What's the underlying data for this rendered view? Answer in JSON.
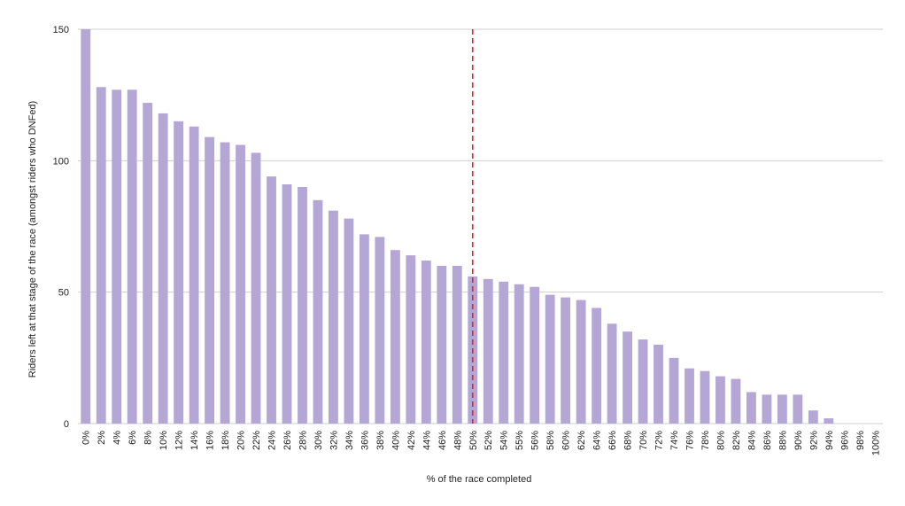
{
  "chart_data": {
    "type": "bar",
    "title": "",
    "xlabel": "% of the race completed",
    "ylabel": "Riders left at that stage of the race (amongst riders who DNFed)",
    "ylim": [
      0,
      150
    ],
    "yticks": [
      0,
      50,
      100,
      150
    ],
    "grid": true,
    "bar_color": "#b4a7d6",
    "marker_line": {
      "category": "50%",
      "color": "#e0202a",
      "style": "dashed"
    },
    "categories": [
      "0%",
      "2%",
      "4%",
      "6%",
      "8%",
      "10%",
      "12%",
      "14%",
      "16%",
      "18%",
      "20%",
      "22%",
      "24%",
      "26%",
      "28%",
      "30%",
      "32%",
      "34%",
      "36%",
      "38%",
      "40%",
      "42%",
      "44%",
      "46%",
      "48%",
      "50%",
      "52%",
      "54%",
      "55%",
      "56%",
      "58%",
      "60%",
      "62%",
      "64%",
      "66%",
      "68%",
      "70%",
      "72%",
      "74%",
      "76%",
      "78%",
      "80%",
      "82%",
      "84%",
      "86%",
      "88%",
      "90%",
      "92%",
      "94%",
      "96%",
      "98%",
      "100%"
    ],
    "values": [
      150,
      128,
      127,
      127,
      122,
      118,
      115,
      113,
      109,
      107,
      106,
      103,
      94,
      91,
      90,
      85,
      81,
      78,
      72,
      71,
      66,
      64,
      62,
      60,
      60,
      56,
      55,
      54,
      53,
      52,
      49,
      48,
      47,
      44,
      38,
      35,
      32,
      30,
      25,
      21,
      20,
      18,
      17,
      12,
      11,
      11,
      11,
      5,
      2,
      0,
      0,
      0
    ]
  }
}
